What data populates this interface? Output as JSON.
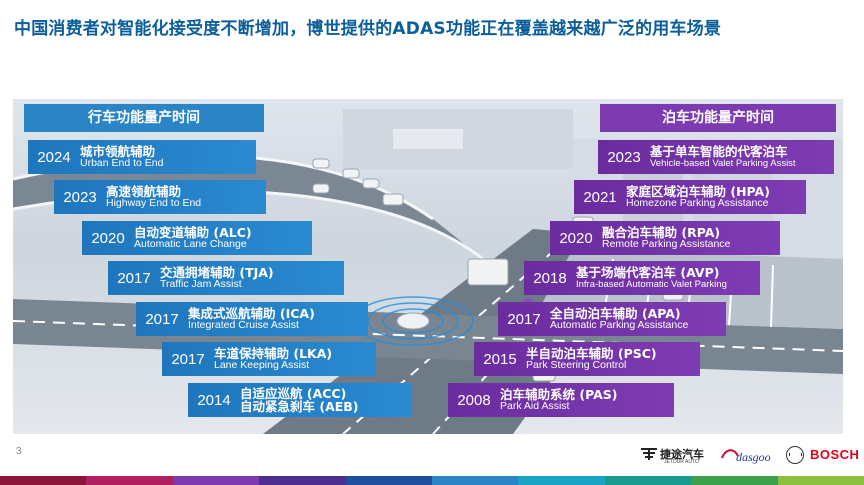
{
  "headline": "中国消费者对智能化接受度不断增加，博世提供的ADAS功能正在覆盖越来越广泛的用车场景",
  "left_header": "行车功能量产时间",
  "right_header": "泊车功能量产时间",
  "driving_features": [
    {
      "year": "2024",
      "cn": "城市领航辅助",
      "en": "Urban End to End"
    },
    {
      "year": "2023",
      "cn": "高速领航辅助",
      "en": "Highway End to End"
    },
    {
      "year": "2020",
      "cn": "自动变道辅助 (ALC)",
      "en": "Automatic Lane Change"
    },
    {
      "year": "2017",
      "cn": "交通拥堵辅助 (TJA)",
      "en": "Traffic Jam Assist"
    },
    {
      "year": "2017",
      "cn": "集成式巡航辅助 (ICA)",
      "en": "Integrated Cruise Assist"
    },
    {
      "year": "2017",
      "cn": "车道保持辅助 (LKA)",
      "en": "Lane Keeping Assist"
    },
    {
      "year": "2014",
      "cn": "自适应巡航 (ACC)",
      "en": "自动紧急刹车 (AEB)"
    }
  ],
  "parking_features": [
    {
      "year": "2023",
      "cn": "基于单车智能的代客泊车",
      "en": "Vehicle-based Valet Parking Assist"
    },
    {
      "year": "2021",
      "cn": "家庭区域泊车辅助 (HPA)",
      "en": "Homezone Parking Assistance"
    },
    {
      "year": "2020",
      "cn": "融合泊车辅助 (RPA)",
      "en": "Remote Parking Assistance"
    },
    {
      "year": "2018",
      "cn": "基于场端代客泊车 (AVP)",
      "en": "Infra-based Automatic Valet Parking"
    },
    {
      "year": "2017",
      "cn": "全自动泊车辅助 (APA)",
      "en": "Automatic Parking Assistance"
    },
    {
      "year": "2015",
      "cn": "半自动泊车辅助 (PSC)",
      "en": "Park Steering Control"
    },
    {
      "year": "2008",
      "cn": "泊车辅助系统 (PAS)",
      "en": "Park Aid Assist"
    }
  ],
  "page_number": "3",
  "logos": {
    "jetour_cn": "捷途汽车",
    "jetour_en": "JETOUR AUTO",
    "dasgoo": "dasgoo",
    "bosch": "BOSCH"
  },
  "colors": {
    "headline": "#0b5e9c",
    "driving_blue": "#2a84c6",
    "parking_purple": "#7d3bb1",
    "bosch_red": "#e2001a"
  }
}
